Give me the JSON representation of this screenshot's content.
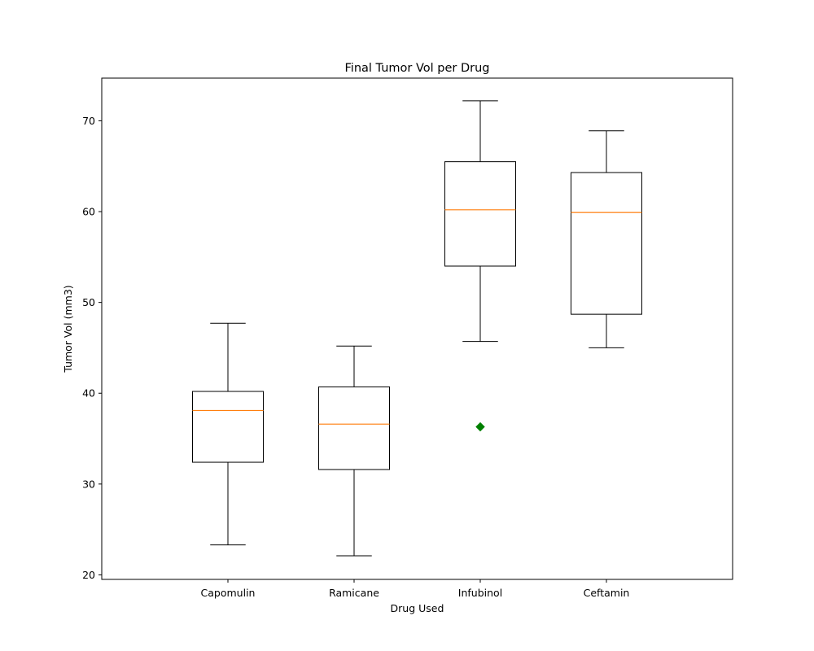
{
  "chart_data": {
    "type": "box",
    "title": "Final Tumor Vol per Drug",
    "xlabel": "Drug Used",
    "ylabel": "Tumor Vol (mm3)",
    "ylim": [
      19.5,
      74.7
    ],
    "yticks": [
      20,
      30,
      40,
      50,
      60,
      70
    ],
    "categories": [
      "Capomulin",
      "Ramicane",
      "Infubinol",
      "Ceftamin"
    ],
    "boxes": [
      {
        "name": "Capomulin",
        "whisker_low": 23.3,
        "q1": 32.4,
        "median": 38.1,
        "q3": 40.2,
        "whisker_high": 47.7,
        "outliers": []
      },
      {
        "name": "Ramicane",
        "whisker_low": 22.1,
        "q1": 31.6,
        "median": 36.6,
        "q3": 40.7,
        "whisker_high": 45.2,
        "outliers": []
      },
      {
        "name": "Infubinol",
        "whisker_low": 45.7,
        "q1": 54.0,
        "median": 60.2,
        "q3": 65.5,
        "whisker_high": 72.2,
        "outliers": [
          36.3
        ]
      },
      {
        "name": "Ceftamin",
        "whisker_low": 45.0,
        "q1": 48.7,
        "median": 59.9,
        "q3": 64.3,
        "whisker_high": 68.9,
        "outliers": []
      }
    ],
    "grid": false,
    "colors": {
      "box": "#000000",
      "median": "#ff7f0e",
      "outlier": "#008000"
    }
  }
}
